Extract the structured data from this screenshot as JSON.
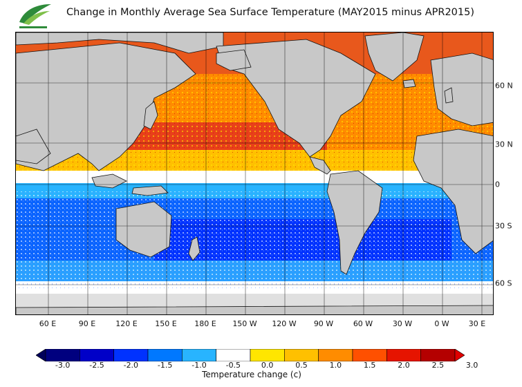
{
  "title": "Change in Monthly Average Sea Surface Temperature (MAY2015 minus APR2015)",
  "longitude_labels": [
    "60 E",
    "90 E",
    "120 E",
    "150 E",
    "180 E",
    "150 W",
    "120 W",
    "90 W",
    "60 W",
    "30 W",
    "0 W",
    "30 E"
  ],
  "latitude_labels": [
    "60 N",
    "30 N",
    "0",
    "30 S",
    "60 S"
  ],
  "colorbar": {
    "title": "Temperature change  (c)",
    "tick_labels": [
      "-3.0",
      "-2.5",
      "-2.0",
      "-1.5",
      "-1.0",
      "-0.5",
      "0.0",
      "0.5",
      "1.0",
      "1.5",
      "2.0",
      "2.5",
      "3.0"
    ],
    "colors": [
      "#00007f",
      "#0000c8",
      "#0032ff",
      "#0078ff",
      "#28b4ff",
      "#ffffff",
      "#ffe600",
      "#ffc000",
      "#ff8c00",
      "#ff5000",
      "#e61400",
      "#b40000"
    ],
    "extend_low_color": "#00005a",
    "extend_high_color": "#e00000"
  },
  "colors": {
    "land": "#c8c8c8",
    "ice": "#e0e0e0",
    "cooling": "#1e64ff",
    "warming": "#ff6400"
  }
}
